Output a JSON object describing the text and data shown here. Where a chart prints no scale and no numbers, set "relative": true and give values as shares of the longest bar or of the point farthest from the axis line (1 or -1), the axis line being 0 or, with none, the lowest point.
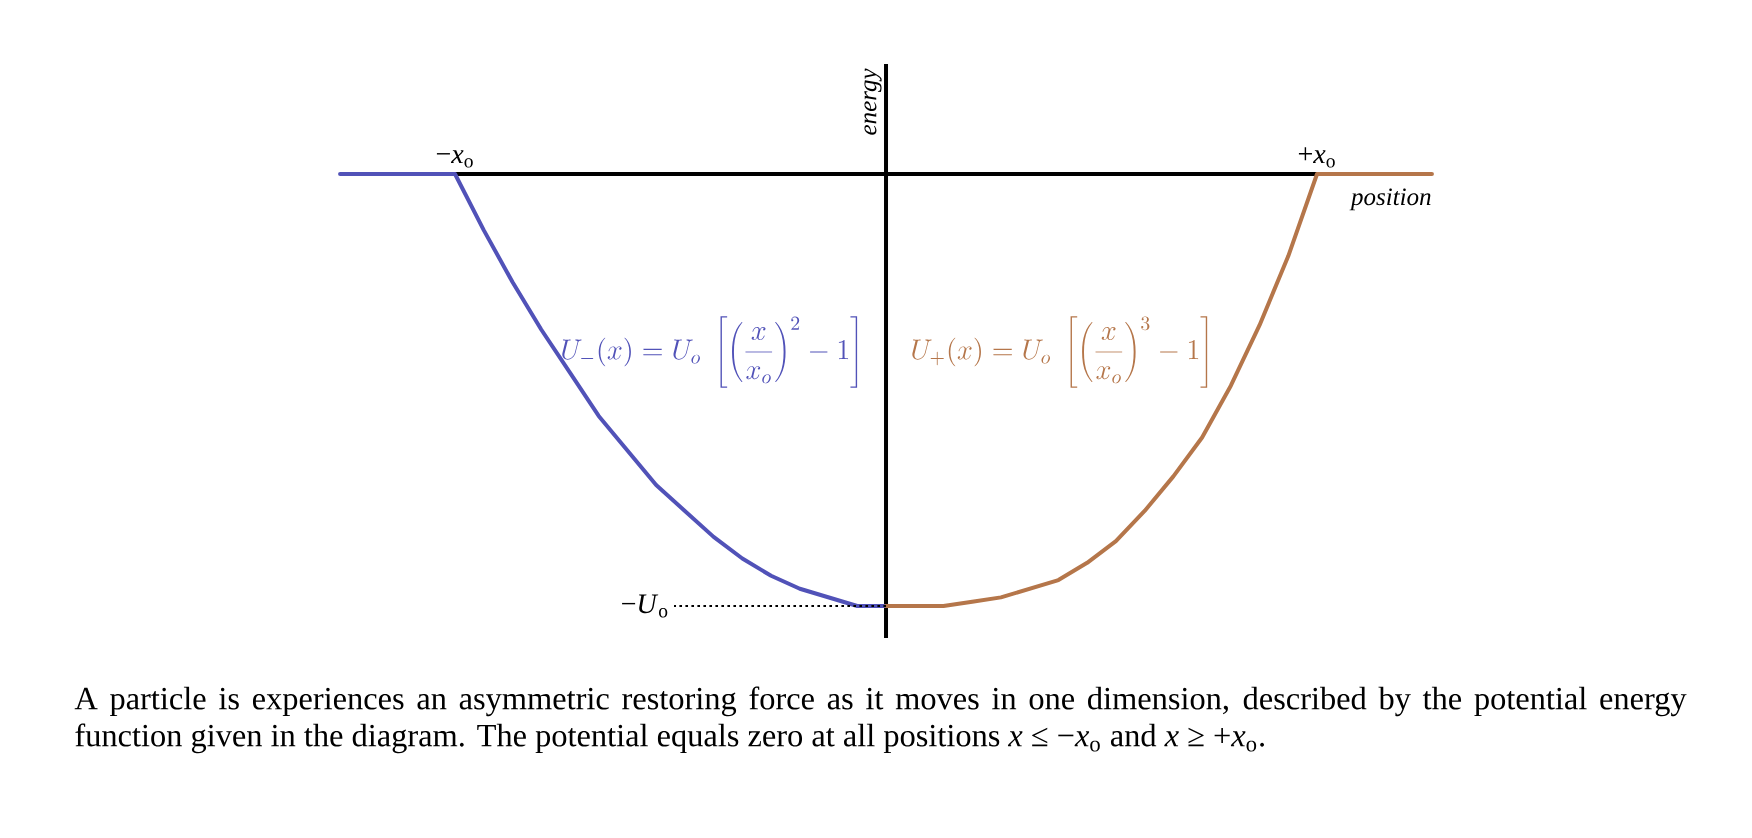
{
  "chart_data": {
    "type": "line",
    "relative": true,
    "xlabel": "position",
    "ylabel": "energy",
    "categories": [
      null,
      null,
      null,
      null,
      "−*x*$_{o}$",
      null,
      null,
      null,
      null,
      null,
      null,
      null,
      null,
      null,
      null,
      null,
      null,
      null,
      null,
      null,
      null,
      null,
      null,
      null,
      null,
      null,
      null,
      null,
      null,
      null,
      null,
      null,
      null,
      null,
      "+*x*$_{o}$",
      null,
      null,
      null,
      null
    ],
    "series": [
      {
        "name": "U_-(x) = U_o\\;\\left[\\left(\\frac{x}{x_o}\\right)^2-1\\right]",
        "color": "#5152b8",
        "values": [
          0,
          0,
          0,
          0,
          0,
          -0.13,
          -0.25,
          -0.36,
          -0.46,
          -0.56,
          -0.64,
          -0.72,
          -0.78,
          -0.84,
          -0.89,
          -0.93,
          -0.96,
          -0.98,
          -1,
          -1,
          null,
          null,
          null,
          null,
          null,
          null,
          null,
          null,
          null,
          null,
          null,
          null,
          null,
          null,
          null,
          null,
          null,
          null,
          null
        ]
      },
      {
        "name": "U_+(x) = U_o\\;\\left[\\left(\\frac{x}{x_o}\\right)^3-1\\right]",
        "color": "#b5764a",
        "values": [
          null,
          null,
          null,
          null,
          null,
          null,
          null,
          null,
          null,
          null,
          null,
          null,
          null,
          null,
          null,
          null,
          null,
          null,
          null,
          -1,
          -1,
          -1,
          -0.99,
          -0.98,
          -0.96,
          -0.94,
          -0.9,
          -0.85,
          -0.78,
          -0.7,
          -0.61,
          -0.49,
          -0.35,
          -0.19,
          0,
          0,
          0,
          0,
          0
        ]
      }
    ],
    "ref_lines": [
      {
        "axis": "y",
        "value": -1,
        "label": "−*U*$_{o}$",
        "line_style": "dotted"
      }
    ],
    "annotations": [
      "A particle is experiences an asymmetric restoring force as it moves in one dimension, described by the potential energy function given in the diagram. The potential equals zero at all positions *x* ≤ −*x*$_{o}$ and *x* ≥ +*x*$_{o}$."
    ]
  }
}
